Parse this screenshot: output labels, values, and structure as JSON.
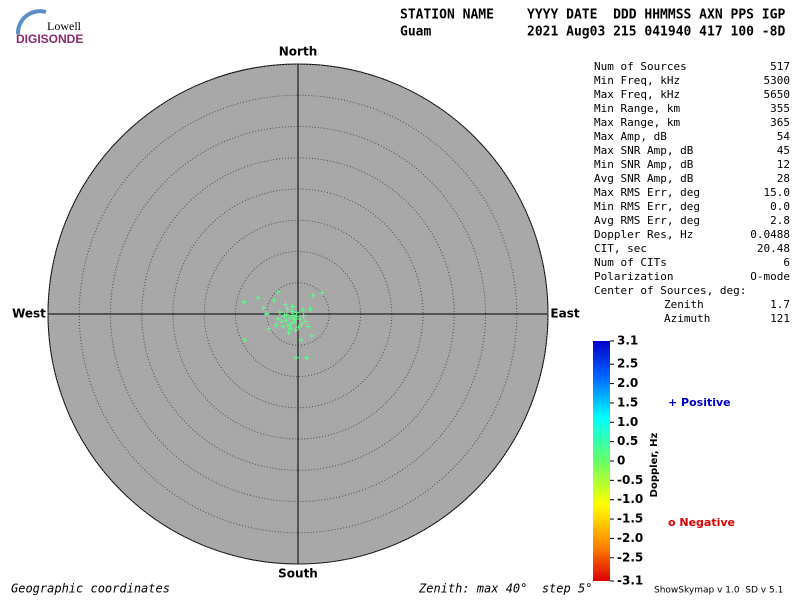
{
  "logo": {
    "top": "Lowell",
    "bottom": "DIGISONDE"
  },
  "header": {
    "station_label": "STATION NAME",
    "fields_label": "YYYY DATE  DDD HHMMSS AXN PPS IGP",
    "station": "Guam",
    "fields": "2021 Aug03 215 041940 417 100 -8D"
  },
  "stats": [
    [
      "Num of Sources",
      "517"
    ],
    [
      "Min Freq, kHz",
      "5300"
    ],
    [
      "Max Freq, kHz",
      "5650"
    ],
    [
      "Min Range, km",
      "355"
    ],
    [
      "Max Range, km",
      "365"
    ],
    [
      "Max Amp, dB",
      "54"
    ],
    [
      "Max SNR Amp, dB",
      "45"
    ],
    [
      "Min SNR Amp, dB",
      "12"
    ],
    [
      "Avg SNR Amp, dB",
      "28"
    ],
    [
      "Max RMS Err, deg",
      "15.0"
    ],
    [
      "Min RMS Err, deg",
      "0.0"
    ],
    [
      "Avg RMS Err, deg",
      "2.8"
    ],
    [
      "Doppler Res, Hz",
      "0.0488"
    ],
    [
      "CIT, sec",
      "20.48"
    ],
    [
      "Num of CITs",
      "6"
    ],
    [
      "Polarization",
      "O-mode"
    ]
  ],
  "center": {
    "title": "Center of Sources, deg:",
    "rows": [
      [
        "Zenith",
        "1.7"
      ],
      [
        "Azimuth",
        "121"
      ]
    ]
  },
  "chart_data": {
    "type": "skymap",
    "directions": {
      "north": "North",
      "south": "South",
      "east": "East",
      "west": "West"
    },
    "rlim": [
      0,
      40
    ],
    "rticks": [
      5,
      10,
      15,
      20,
      25,
      30,
      35,
      40
    ],
    "color": "#55ff88",
    "x": [
      -1.3,
      -0.8,
      -1.9,
      -0.5,
      -2.2,
      -1.0,
      0.3,
      -1.6,
      -2.6,
      -0.2,
      0.6,
      -1.2,
      -2.9,
      -1.7,
      0.9,
      -0.4,
      -2.4,
      1.2,
      -3.2,
      -0.9,
      0.1,
      -1.5,
      -2.0,
      0.8,
      -3.5,
      1.6,
      -0.6,
      -1.1,
      -1.8,
      -0.3,
      -8.6,
      -6.4,
      3.8,
      -8.5,
      1.4,
      -0.3,
      -3.2,
      2.4,
      -5.5,
      -4.6,
      2.2,
      -5.0,
      2.0,
      0.5,
      -3.8
    ],
    "y": [
      -0.6,
      -0.2,
      -1.0,
      -1.3,
      -0.3,
      0.4,
      -0.8,
      -1.8,
      -1.2,
      0.2,
      -1.6,
      -2.3,
      0.3,
      0.8,
      -0.3,
      -2.6,
      -2.0,
      -1.2,
      -0.8,
      1.2,
      -2.1,
      -3.0,
      1.5,
      0.6,
      -1.8,
      -2.0,
      -0.9,
      -1.5,
      -0.1,
      -0.4,
      1.9,
      2.6,
      3.4,
      -4.2,
      -7.0,
      -7.0,
      3.5,
      2.9,
      1.0,
      -2.4,
      -3.5,
      0.0,
      0.8,
      -4.2,
      2.2
    ]
  },
  "colorbar": {
    "label": "Doppler, Hz",
    "lim": [
      -3.1,
      3.1
    ],
    "ticks": [
      3.1,
      2.5,
      {
        "value": 2,
        "label": "2.0"
      },
      1.5,
      {
        "value": 1,
        "label": "1.0"
      },
      0.5,
      0,
      -0.5,
      {
        "value": -1,
        "label": "-1.0"
      },
      -1.5,
      {
        "value": -2,
        "label": "-2.0"
      },
      -2.5,
      -3.1
    ],
    "positive": "+ Positive",
    "negative": "o Negative"
  },
  "footer": {
    "left": "Geographic coordinates",
    "middle": "Zenith: max 40°  step 5°",
    "right": "ShowSkymap v 1.0  SD v 5.1"
  }
}
